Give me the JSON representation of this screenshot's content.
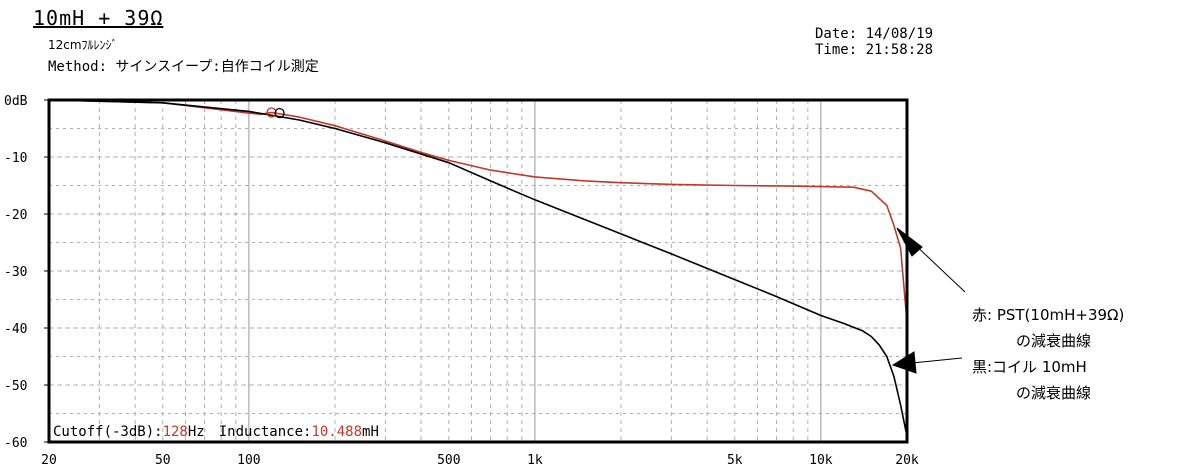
{
  "header": {
    "title": "10mH + 39Ω",
    "subtitle": "12cmﾌﾙﾚﾝｼﾞ",
    "method": "Method: サインスイープ:自作コイル測定",
    "date": "Date: 14/08/19",
    "time": "Time: 21:58:28"
  },
  "readout": {
    "cutoff_label": "Cutoff(-3dB):",
    "cutoff_value": "128",
    "cutoff_unit": "Hz",
    "inductance_label": "Inductance:",
    "inductance_value": "10.488",
    "inductance_unit": "mH"
  },
  "annotations": {
    "red_line1": "赤: PST(10mH+39Ω)",
    "red_line2": "の減衰曲線",
    "black_line1": "黒:コイル 10mH",
    "black_line2": "の減衰曲線"
  },
  "colors": {
    "red_curve": "#c0392b",
    "black_curve": "#000000",
    "grid": "#b0b0b0",
    "frame": "#000000"
  },
  "chart_data": {
    "type": "line",
    "x_scale": "log",
    "xlim": [
      20,
      20000
    ],
    "ylim": [
      -60,
      0
    ],
    "grid": true,
    "y_ticks": [
      0,
      -10,
      -20,
      -30,
      -40,
      -50,
      -60
    ],
    "y_tick_labels": [
      "0dB",
      "-10",
      "-20",
      "-30",
      "-40",
      "-50",
      "-60"
    ],
    "x_ticks": [
      20,
      50,
      100,
      500,
      1000,
      5000,
      10000,
      20000
    ],
    "x_tick_labels": [
      "20",
      "50",
      "100",
      "500",
      "1k",
      "5k",
      "10k",
      "20k"
    ],
    "series": [
      {
        "color_key": "red_curve",
        "x": [
          20,
          50,
          100,
          110,
          120,
          150,
          200,
          300,
          400,
          500,
          700,
          1000,
          1500,
          2000,
          3000,
          5000,
          8000,
          10000,
          13000,
          15000,
          17000,
          18000,
          19000,
          20000
        ],
        "y": [
          0,
          -0.5,
          -2.3,
          -2.5,
          -2.2,
          -3,
          -4.5,
          -7.2,
          -9.2,
          -10.6,
          -12.3,
          -13.5,
          -14.2,
          -14.5,
          -14.8,
          -15,
          -15.1,
          -15.2,
          -15.3,
          -16,
          -18.5,
          -22,
          -26,
          -39
        ]
      },
      {
        "color_key": "black_curve",
        "x": [
          20,
          50,
          100,
          150,
          200,
          300,
          500,
          700,
          1000,
          1500,
          2000,
          3000,
          5000,
          7000,
          10000,
          12000,
          14000,
          15000,
          16000,
          17000,
          18000,
          19000,
          20000
        ],
        "y": [
          0,
          -0.5,
          -2,
          -3.5,
          -5,
          -7.5,
          -11,
          -14.2,
          -17.5,
          -21,
          -23.5,
          -27,
          -31.5,
          -34.5,
          -37.8,
          -39.2,
          -40.5,
          -41.5,
          -43,
          -45,
          -48.5,
          -53.5,
          -59
        ]
      }
    ],
    "markers": [
      {
        "x": 120,
        "y": -2.2,
        "shape": "circle",
        "color_key": "red_curve"
      },
      {
        "x": 128,
        "y": -2.3,
        "shape": "circle",
        "color_key": "black_curve"
      }
    ]
  }
}
